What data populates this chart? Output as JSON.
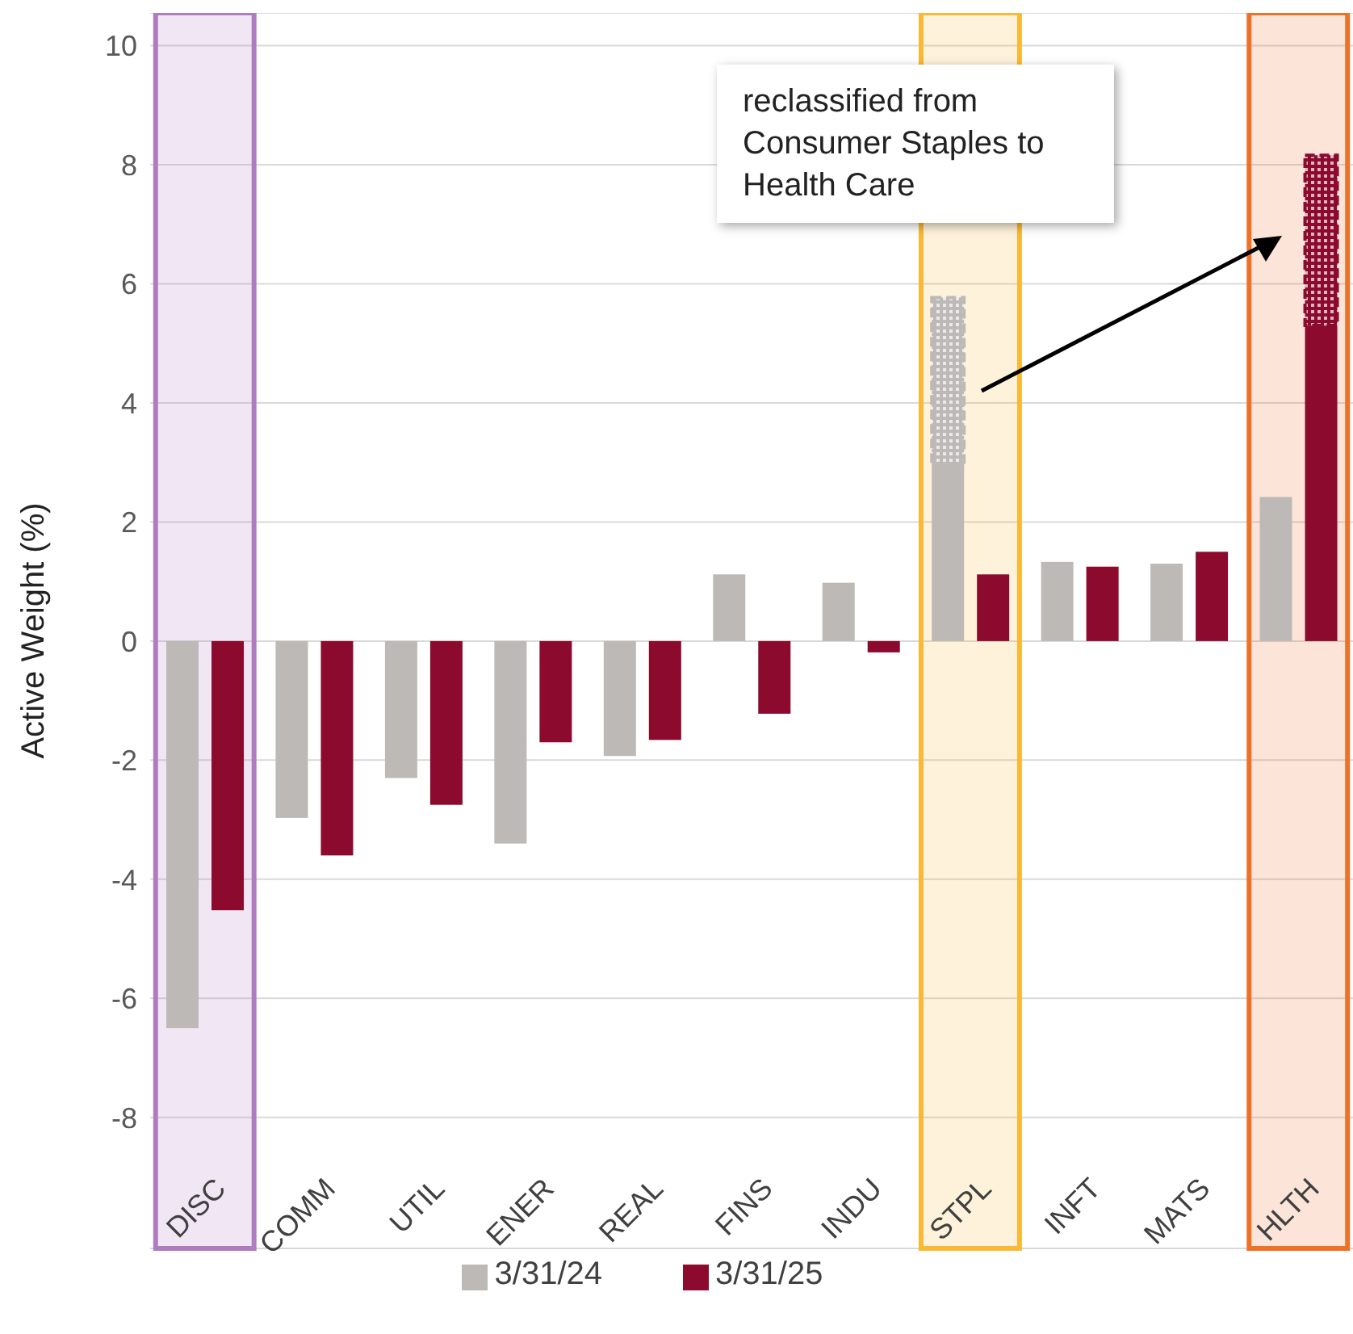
{
  "chart_data": {
    "type": "bar",
    "ylabel": "Active Weight (%)",
    "categories": [
      "DISC",
      "COMM",
      "UTIL",
      "ENER",
      "REAL",
      "FINS",
      "INDU",
      "STPL",
      "INFT",
      "MATS",
      "HLTH"
    ],
    "series": [
      {
        "name": "3/31/24",
        "color": "#bdb9b6",
        "values": [
          -6.5,
          -2.97,
          -2.3,
          -3.4,
          -1.93,
          1.12,
          0.98,
          2.97,
          1.33,
          1.3,
          2.42
        ]
      },
      {
        "color": "#bdb9b6",
        "values": [
          null,
          null,
          null,
          null,
          null,
          null,
          null,
          2.8,
          null,
          null,
          null
        ],
        "base": [
          null,
          null,
          null,
          null,
          null,
          null,
          null,
          2.97,
          null,
          null,
          null
        ]
      },
      {
        "name": "3/31/25",
        "color": "#8b0a2e",
        "values": [
          -4.52,
          -3.6,
          -2.75,
          -1.7,
          -1.66,
          -1.22,
          -0.19,
          1.12,
          1.25,
          1.5,
          5.3
        ]
      },
      {
        "color": "#8b0a2e",
        "values": [
          null,
          null,
          null,
          null,
          null,
          null,
          null,
          null,
          null,
          null,
          2.86
        ],
        "base": [
          null,
          null,
          null,
          null,
          null,
          null,
          null,
          null,
          null,
          null,
          5.3
        ]
      }
    ],
    "ylim": [
      -10.2,
      10.55
    ],
    "yticks": [
      -8,
      -6,
      -4,
      -2,
      0,
      2,
      4,
      6,
      8,
      10
    ],
    "grid": "y",
    "legend": "bottom",
    "bands": [
      {
        "axis": "x",
        "from": "DISC",
        "to": "DISC",
        "color": "#b07cc0"
      },
      {
        "axis": "x",
        "from": "STPL",
        "to": "STPL",
        "color": "#f9b935"
      },
      {
        "axis": "x",
        "from": "HLTH",
        "to": "HLTH",
        "color": "#ee7128"
      }
    ],
    "annotations": [
      "reclassified from Consumer Staples to Health Care"
    ]
  }
}
